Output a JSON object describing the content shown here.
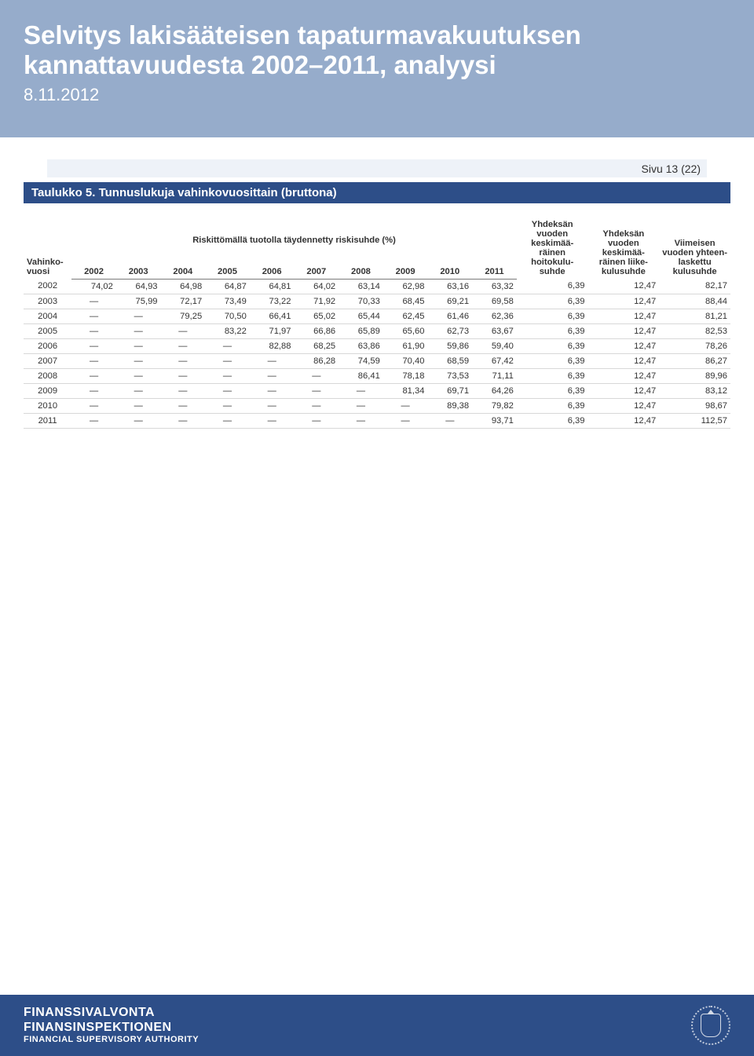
{
  "colors": {
    "header_bg": "#96accb",
    "page_band_bg": "#eef2f8",
    "title_band_bg": "#2d4e88",
    "footer_bg": "#2d4e88",
    "text_dark": "#333333",
    "rule": "#7a7a7a",
    "row_rule": "#d8d8d8",
    "white": "#ffffff"
  },
  "header": {
    "title_line1": "Selvitys lakisääteisen tapaturmavakuutuksen",
    "title_line2": "kannattavuudesta 2002–2011, analyysi",
    "date": "8.11.2012"
  },
  "page_label": "Sivu 13 (22)",
  "table": {
    "title": "Taulukko 5. Tunnuslukuja vahinkovuosittain (bruttona)",
    "row_header": "Vahinko-\nvuosi",
    "group_header": "Riskittömällä tuotolla täydennetty riskisuhde (%)",
    "year_cols": [
      "2002",
      "2003",
      "2004",
      "2005",
      "2006",
      "2007",
      "2008",
      "2009",
      "2010",
      "2011"
    ],
    "extra_cols": [
      "Yhdeksän vuoden keskimää-räinen hoitokulu-suhde",
      "Yhdeksän vuoden keskimää-räinen liike-kulusuhde",
      "Viimeisen vuoden yhteen-laskettu kulusuhde"
    ],
    "rows": [
      {
        "year": "2002",
        "vals": [
          "74,02",
          "64,93",
          "64,98",
          "64,87",
          "64,81",
          "64,02",
          "63,14",
          "62,98",
          "63,16",
          "63,32"
        ],
        "ext": [
          "6,39",
          "12,47",
          "82,17"
        ]
      },
      {
        "year": "2003",
        "vals": [
          "—",
          "75,99",
          "72,17",
          "73,49",
          "73,22",
          "71,92",
          "70,33",
          "68,45",
          "69,21",
          "69,58"
        ],
        "ext": [
          "6,39",
          "12,47",
          "88,44"
        ]
      },
      {
        "year": "2004",
        "vals": [
          "—",
          "—",
          "79,25",
          "70,50",
          "66,41",
          "65,02",
          "65,44",
          "62,45",
          "61,46",
          "62,36"
        ],
        "ext": [
          "6,39",
          "12,47",
          "81,21"
        ]
      },
      {
        "year": "2005",
        "vals": [
          "—",
          "—",
          "—",
          "83,22",
          "71,97",
          "66,86",
          "65,89",
          "65,60",
          "62,73",
          "63,67"
        ],
        "ext": [
          "6,39",
          "12,47",
          "82,53"
        ]
      },
      {
        "year": "2006",
        "vals": [
          "—",
          "—",
          "—",
          "—",
          "82,88",
          "68,25",
          "63,86",
          "61,90",
          "59,86",
          "59,40"
        ],
        "ext": [
          "6,39",
          "12,47",
          "78,26"
        ]
      },
      {
        "year": "2007",
        "vals": [
          "—",
          "—",
          "—",
          "—",
          "—",
          "86,28",
          "74,59",
          "70,40",
          "68,59",
          "67,42"
        ],
        "ext": [
          "6,39",
          "12,47",
          "86,27"
        ]
      },
      {
        "year": "2008",
        "vals": [
          "—",
          "—",
          "—",
          "—",
          "—",
          "—",
          "86,41",
          "78,18",
          "73,53",
          "71,11"
        ],
        "ext": [
          "6,39",
          "12,47",
          "89,96"
        ]
      },
      {
        "year": "2009",
        "vals": [
          "—",
          "—",
          "—",
          "—",
          "—",
          "—",
          "—",
          "81,34",
          "69,71",
          "64,26"
        ],
        "ext": [
          "6,39",
          "12,47",
          "83,12"
        ]
      },
      {
        "year": "2010",
        "vals": [
          "—",
          "—",
          "—",
          "—",
          "—",
          "—",
          "—",
          "—",
          "89,38",
          "79,82"
        ],
        "ext": [
          "6,39",
          "12,47",
          "98,67"
        ]
      },
      {
        "year": "2011",
        "vals": [
          "—",
          "—",
          "—",
          "—",
          "—",
          "—",
          "—",
          "—",
          "—",
          "93,71"
        ],
        "ext": [
          "6,39",
          "12,47",
          "112,57"
        ]
      }
    ]
  },
  "footer": {
    "line1": "FINANSSIVALVONTA",
    "line2": "FINANSINSPEKTIONEN",
    "line3": "FINANCIAL SUPERVISORY AUTHORITY"
  }
}
